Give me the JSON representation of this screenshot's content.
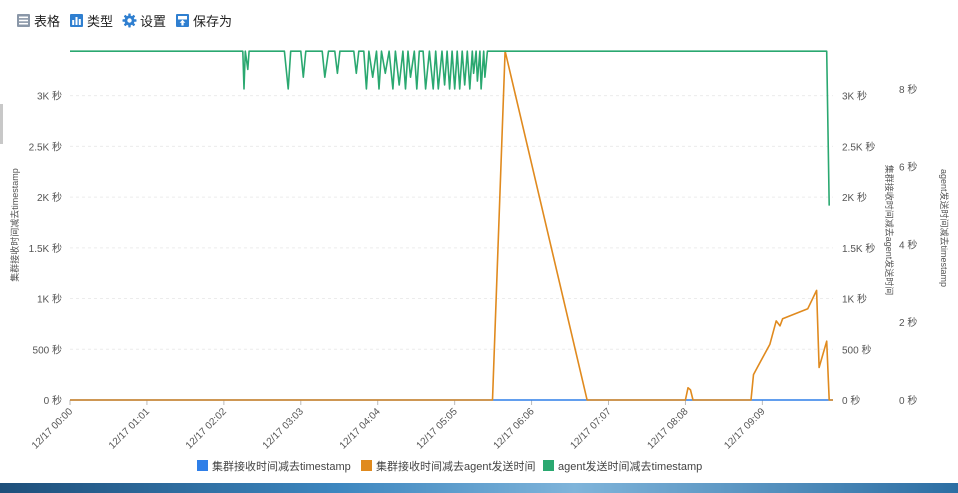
{
  "toolbar": {
    "items": [
      {
        "label": "表格",
        "icon": "table-icon"
      },
      {
        "label": "类型",
        "icon": "bar-chart-icon"
      },
      {
        "label": "设置",
        "icon": "gear-icon"
      },
      {
        "label": "保存为",
        "icon": "save-icon"
      }
    ],
    "icon_color": "#2f7fd0"
  },
  "chart_data": {
    "type": "line",
    "title": "",
    "x_ticks": [
      "12/17 00:00",
      "12/17 01:01",
      "12/17 02:02",
      "12/17 03:03",
      "12/17 04:04",
      "12/17 05:05",
      "12/17 06:06",
      "12/17 07:07",
      "12/17 08:08",
      "12/17 09:09"
    ],
    "x_range_minutes": [
      0,
      605
    ],
    "axes": {
      "left": {
        "label": "集群接收时间减去timestamp",
        "range": [
          0,
          3450
        ],
        "ticks": [
          "0 秒",
          "500 秒",
          "1K 秒",
          "1.5K 秒",
          "2K 秒",
          "2.5K 秒",
          "3K 秒"
        ]
      },
      "right1": {
        "label": "集群接收时间减去agent发送时间",
        "range": [
          0,
          3450
        ],
        "ticks": [
          "0 秒",
          "500 秒",
          "1K 秒",
          "1.5K 秒",
          "2K 秒",
          "2.5K 秒",
          "3K 秒"
        ]
      },
      "right2": {
        "label": "agent发送时间减去timestamp",
        "range": [
          0,
          9
        ],
        "ticks": [
          "0 秒",
          "2 秒",
          "4 秒",
          "6 秒",
          "8 秒"
        ]
      }
    },
    "grid": true,
    "legend_position": "bottom",
    "series": [
      {
        "name": "集群接收时间减去timestamp",
        "color": "#2f7fe8",
        "axis": "left",
        "points": [
          [
            0,
            0
          ],
          [
            605,
            0
          ]
        ]
      },
      {
        "name": "集群接收时间减去agent发送时间",
        "color": "#e08a1e",
        "axis": "right1",
        "points": [
          [
            0,
            0
          ],
          [
            335,
            0
          ],
          [
            345,
            3440
          ],
          [
            410,
            0
          ],
          [
            488,
            0
          ],
          [
            490,
            120
          ],
          [
            492,
            100
          ],
          [
            494,
            0
          ],
          [
            540,
            0
          ],
          [
            542,
            250
          ],
          [
            545,
            320
          ],
          [
            555,
            550
          ],
          [
            560,
            780
          ],
          [
            563,
            730
          ],
          [
            565,
            800
          ],
          [
            575,
            850
          ],
          [
            585,
            900
          ],
          [
            592,
            1080
          ],
          [
            594,
            320
          ],
          [
            600,
            580
          ],
          [
            602,
            0
          ],
          [
            605,
            0
          ]
        ]
      },
      {
        "name": "agent发送时间减去timestamp",
        "color": "#2aa870",
        "axis": "right2",
        "points": [
          [
            0,
            8.97
          ],
          [
            137,
            8.97
          ],
          [
            138,
            8.0
          ],
          [
            139,
            8.97
          ],
          [
            141,
            8.5
          ],
          [
            142,
            8.97
          ],
          [
            170,
            8.97
          ],
          [
            173,
            8.0
          ],
          [
            175,
            8.97
          ],
          [
            183,
            8.97
          ],
          [
            185,
            8.3
          ],
          [
            187,
            8.97
          ],
          [
            200,
            8.97
          ],
          [
            202,
            8.3
          ],
          [
            205,
            8.97
          ],
          [
            210,
            8.97
          ],
          [
            212,
            8.4
          ],
          [
            214,
            8.97
          ],
          [
            225,
            8.97
          ],
          [
            227,
            8.4
          ],
          [
            229,
            8.97
          ],
          [
            233,
            8.97
          ],
          [
            235,
            8.0
          ],
          [
            237,
            8.97
          ],
          [
            240,
            8.3
          ],
          [
            243,
            8.97
          ],
          [
            245,
            8.0
          ],
          [
            247,
            8.97
          ],
          [
            250,
            8.4
          ],
          [
            253,
            8.97
          ],
          [
            256,
            8.0
          ],
          [
            258,
            8.97
          ],
          [
            261,
            8.1
          ],
          [
            264,
            8.97
          ],
          [
            266,
            8.0
          ],
          [
            268,
            8.97
          ],
          [
            270,
            8.3
          ],
          [
            273,
            8.97
          ],
          [
            275,
            8.0
          ],
          [
            277,
            8.97
          ],
          [
            280,
            8.97
          ],
          [
            282,
            8.0
          ],
          [
            285,
            8.97
          ],
          [
            288,
            8.0
          ],
          [
            290,
            8.97
          ],
          [
            292,
            8.0
          ],
          [
            295,
            8.97
          ],
          [
            297,
            8.1
          ],
          [
            299,
            8.97
          ],
          [
            301,
            8.0
          ],
          [
            303,
            8.97
          ],
          [
            305,
            8.0
          ],
          [
            307,
            8.97
          ],
          [
            309,
            8.0
          ],
          [
            311,
            8.97
          ],
          [
            313,
            8.1
          ],
          [
            315,
            8.97
          ],
          [
            317,
            8.0
          ],
          [
            319,
            8.97
          ],
          [
            320,
            8.4
          ],
          [
            322,
            8.97
          ],
          [
            323,
            8.2
          ],
          [
            325,
            8.97
          ],
          [
            326,
            8.0
          ],
          [
            328,
            8.97
          ],
          [
            329,
            8.3
          ],
          [
            331,
            8.97
          ],
          [
            600,
            8.97
          ],
          [
            602,
            5.0
          ]
        ]
      }
    ]
  }
}
